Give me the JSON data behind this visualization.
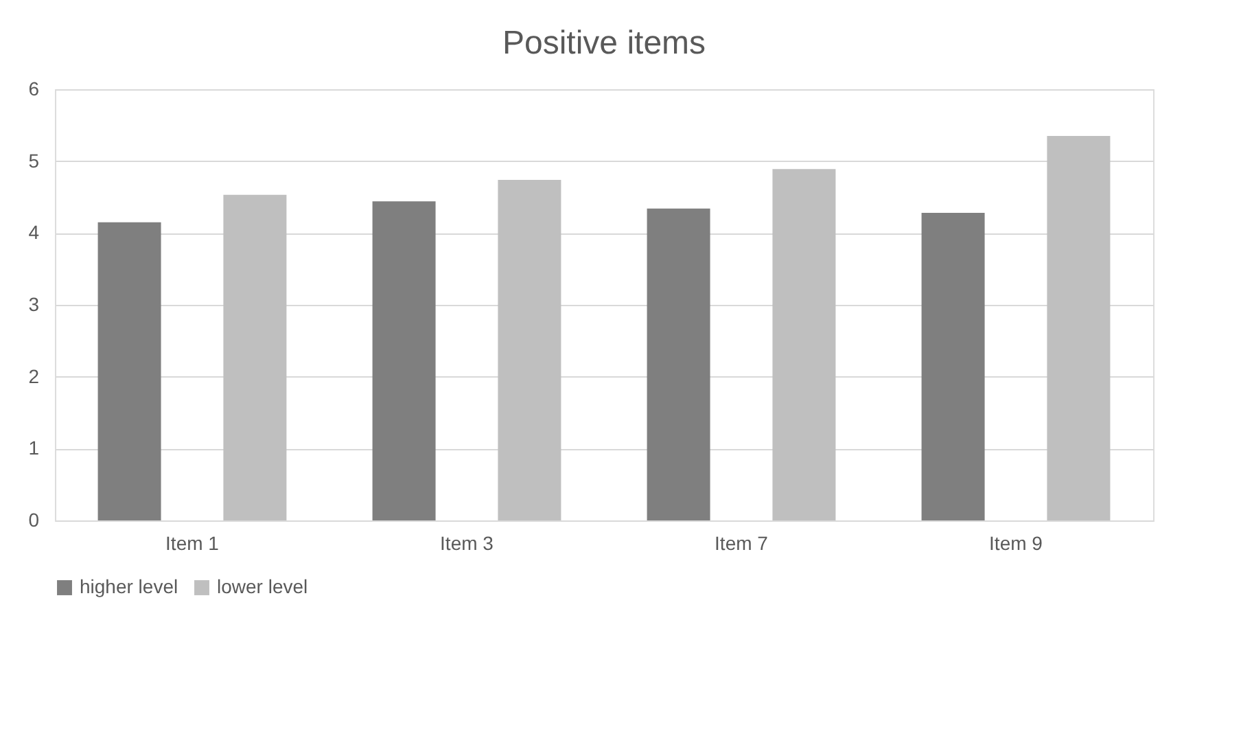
{
  "chart_data": {
    "type": "bar",
    "title": "Positive items",
    "categories": [
      "Item 1",
      "Item 3",
      "Item 7",
      "Item 9"
    ],
    "series": [
      {
        "name": "higher level",
        "color": "#7f7f7f",
        "values": [
          4.15,
          4.44,
          4.34,
          4.28
        ]
      },
      {
        "name": "lower level",
        "color": "#bfbfbf",
        "values": [
          4.53,
          4.74,
          4.89,
          5.35
        ]
      }
    ],
    "ylim": [
      0,
      6
    ],
    "yticks": [
      0,
      1,
      2,
      3,
      4,
      5,
      6
    ],
    "grid": "y",
    "legend": "bottom"
  }
}
